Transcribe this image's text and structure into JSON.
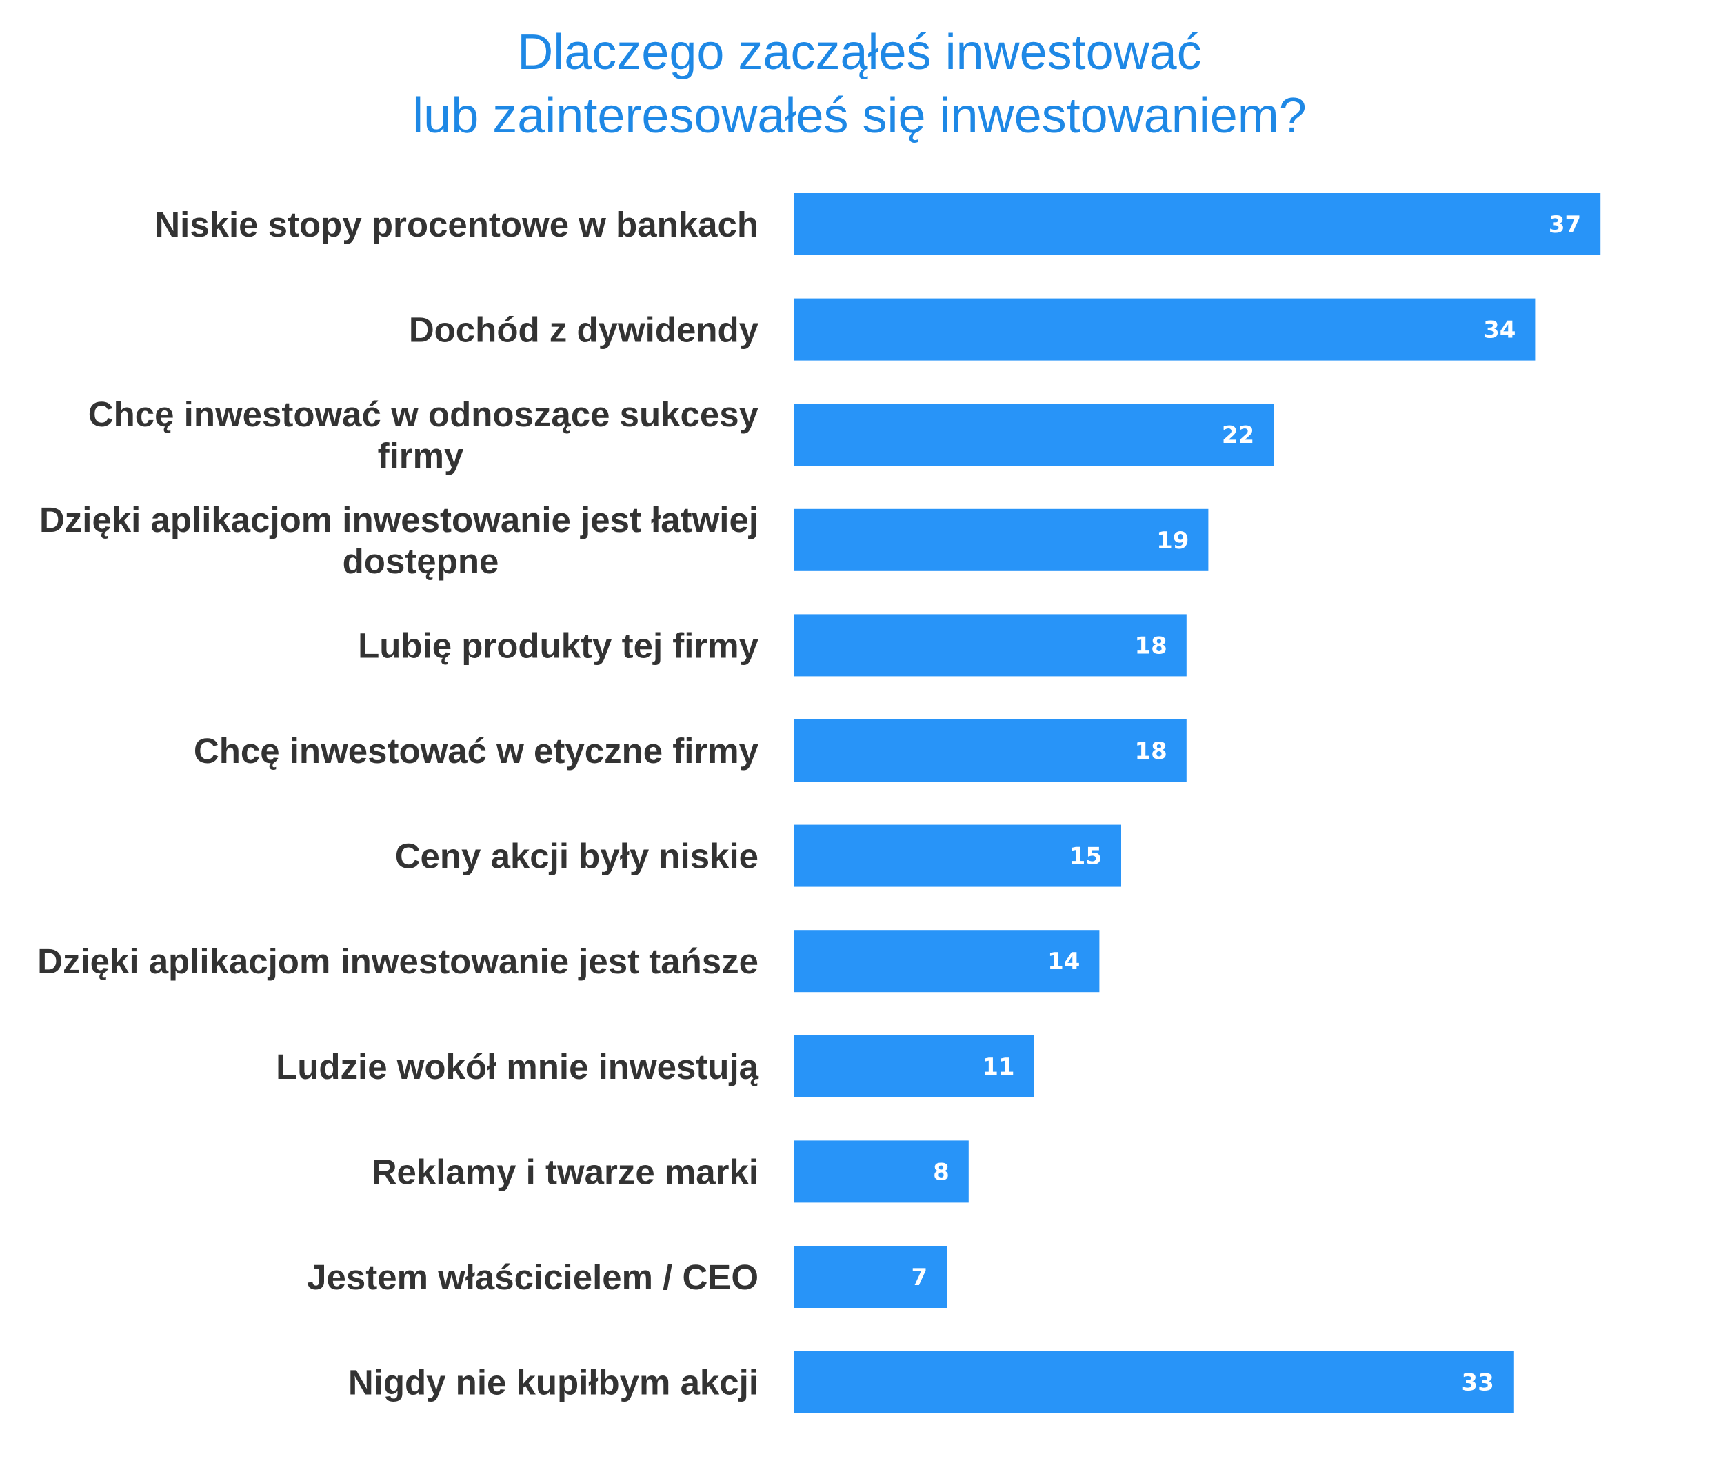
{
  "colors": {
    "title": "#1e88e5",
    "bar": "#2894f8",
    "label": "#333333",
    "value": "#ffffff"
  },
  "chart_data": {
    "type": "bar",
    "orientation": "horizontal",
    "title_lines": [
      "Dlaczego zacząłeś inwestować",
      "lub zainteresowałeś się inwestowaniem?"
    ],
    "categories": [
      [
        "Niskie stopy procentowe w bankach"
      ],
      [
        "Dochód z dywidendy"
      ],
      [
        "Chcę inwestować w odnoszące sukcesy",
        "firmy"
      ],
      [
        "Dzięki aplikacjom inwestowanie jest łatwiej",
        "dostępne"
      ],
      [
        "Lubię produkty tej firmy"
      ],
      [
        "Chcę inwestować w etyczne firmy"
      ],
      [
        "Ceny akcji były niskie"
      ],
      [
        "Dzięki aplikacjom inwestowanie jest tańsze"
      ],
      [
        "Ludzie wokół mnie inwestują"
      ],
      [
        "Reklamy i twarze marki"
      ],
      [
        "Jestem właścicielem / CEO"
      ],
      [
        "Nigdy nie kupiłbym akcji"
      ]
    ],
    "values": [
      37,
      34,
      22,
      19,
      18,
      18,
      15,
      14,
      11,
      8,
      7,
      33
    ],
    "xlim": [
      0,
      40
    ],
    "grid": false,
    "legend": "none",
    "data_labels": "inside-end"
  }
}
